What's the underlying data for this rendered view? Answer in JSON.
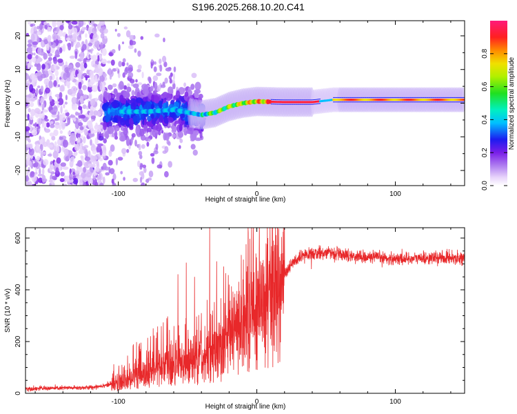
{
  "title": "S196.2025.268.10.20.C41",
  "chart_data": [
    {
      "type": "heatmap",
      "xlabel": "Height of straight line (km)",
      "ylabel": "Frequency (Hz)",
      "xlim": [
        -167,
        150
      ],
      "ylim": [
        -24.5,
        24.5
      ],
      "x_ticks": [
        "-100",
        "0",
        "100"
      ],
      "x_tick_values": [
        -100,
        0,
        100
      ],
      "y_ticks": [
        "20",
        "10",
        "0",
        "-10",
        "-20"
      ],
      "y_tick_values": [
        20,
        10,
        0,
        -10,
        -20
      ],
      "colorbar": {
        "label": "Normalized spectral amplitude",
        "range": [
          0,
          1
        ],
        "ticks": [
          "0.0",
          "0.2",
          "0.4",
          "0.6",
          "0.8"
        ],
        "tick_values": [
          0,
          0.2,
          0.4,
          0.6,
          0.8
        ]
      },
      "ridge": {
        "description_points_km_hz": [
          [
            -95,
            -2.5
          ],
          [
            -80,
            -2.5
          ],
          [
            -60,
            -2.0
          ],
          [
            -40,
            -3.5
          ],
          [
            -30,
            -2.8
          ],
          [
            -20,
            -1.0
          ],
          [
            -10,
            0.0
          ],
          [
            0,
            0.5
          ],
          [
            20,
            0.3
          ],
          [
            40,
            0.3
          ],
          [
            55,
            1.0
          ],
          [
            80,
            1.0
          ],
          [
            100,
            1.0
          ],
          [
            150,
            1.0
          ]
        ]
      }
    },
    {
      "type": "line",
      "xlabel": "Height of straight line (km)",
      "ylabel": "SNR (10 * v/v)",
      "xlim": [
        -167,
        150
      ],
      "ylim": [
        0,
        640
      ],
      "x_ticks": [
        "-100",
        "0",
        "100"
      ],
      "x_tick_values": [
        -100,
        0,
        100
      ],
      "y_ticks": [
        "0",
        "200",
        "400",
        "600"
      ],
      "y_tick_values": [
        0,
        200,
        400,
        600
      ],
      "series_color": "#e8282a",
      "baseline_profile": [
        [
          -167,
          18
        ],
        [
          -120,
          22
        ],
        [
          -100,
          40
        ],
        [
          -85,
          70
        ],
        [
          -70,
          100
        ],
        [
          -55,
          110
        ],
        [
          -40,
          130
        ],
        [
          -25,
          170
        ],
        [
          -15,
          240
        ],
        [
          -5,
          310
        ],
        [
          5,
          350
        ],
        [
          15,
          420
        ],
        [
          25,
          500
        ],
        [
          35,
          535
        ],
        [
          50,
          545
        ],
        [
          70,
          530
        ],
        [
          100,
          520
        ],
        [
          150,
          525
        ]
      ],
      "spikes": [
        [
          -65,
          290
        ],
        [
          -57,
          460
        ],
        [
          -51,
          505
        ],
        [
          -45,
          450
        ],
        [
          -40,
          310
        ],
        [
          -34,
          640
        ],
        [
          -29,
          510
        ],
        [
          -24,
          490
        ],
        [
          -20,
          420
        ],
        [
          -10,
          440
        ],
        [
          8,
          600
        ],
        [
          12,
          590
        ],
        [
          10,
          210
        ]
      ]
    }
  ]
}
